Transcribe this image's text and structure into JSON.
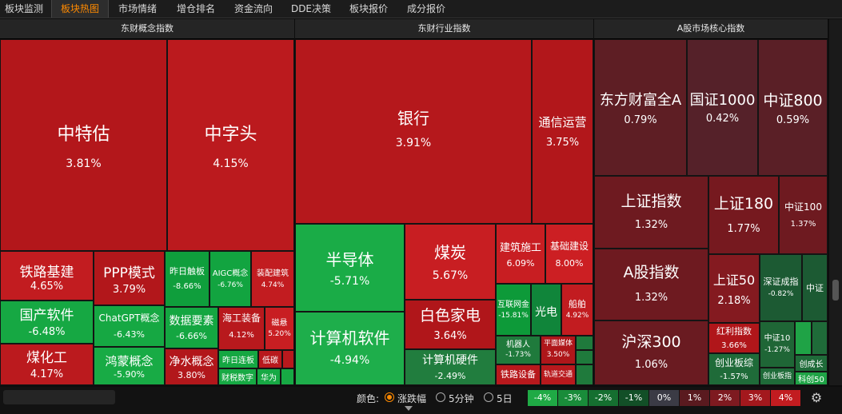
{
  "tabs": [
    "板块监测",
    "板块热图",
    "市场情绪",
    "增仓排名",
    "资金流向",
    "DDE决策",
    "板块报价",
    "成分报价"
  ],
  "active_tab": 1,
  "sections": [
    "东财概念指数",
    "东财行业指数",
    "A股市场核心指数"
  ],
  "tiles": {
    "zhongteigu": {
      "name": "中特估",
      "pct": "3.81%",
      "color": "#b3171b"
    },
    "zhongzitou": {
      "name": "中字头",
      "pct": "4.15%",
      "color": "#bb1a1e"
    },
    "tielujijian": {
      "name": "铁路基建",
      "pct": "4.65%",
      "color": "#c21c20"
    },
    "ppp": {
      "name": "PPP模式",
      "pct": "3.79%",
      "color": "#b2171b"
    },
    "zuorichuban": {
      "name": "昨日触板",
      "pct": "-8.66%",
      "color": "#0f9e3c"
    },
    "aigc": {
      "name": "AIGC概念",
      "pct": "-6.76%",
      "color": "#12a440"
    },
    "zhuangpeijianzhu": {
      "name": "装配建筑",
      "pct": "4.74%",
      "color": "#c21c20"
    },
    "guochanruanjian": {
      "name": "国产软件",
      "pct": "-6.48%",
      "color": "#16a843"
    },
    "chatgpt": {
      "name": "ChatGPT概念",
      "pct": "-6.43%",
      "color": "#16a843"
    },
    "shujuyaosu": {
      "name": "数据要素",
      "pct": "-6.66%",
      "color": "#14a641"
    },
    "haigongzhuangbei": {
      "name": "海工装备",
      "pct": "4.12%",
      "color": "#b8191d"
    },
    "cibei": {
      "name": "磁悬",
      "pct": "5.20%",
      "color": "#c81e22"
    },
    "meihuagong": {
      "name": "煤化工",
      "pct": "4.17%",
      "color": "#bb1a1e"
    },
    "hongmeng": {
      "name": "鸿蒙概念",
      "pct": "-5.90%",
      "color": "#18ab45"
    },
    "jingshui": {
      "name": "净水概念",
      "pct": "3.80%",
      "color": "#b2171b"
    },
    "zuorilianban": {
      "name": "昨日连板",
      "color": "#15a742"
    },
    "ditan": {
      "name": "低碳",
      "color": "#b8191d"
    },
    "caishuishuzi": {
      "name": "财税数字",
      "color": "#17a944"
    },
    "huawei": {
      "name": "华为",
      "color": "#17a944"
    },
    "yinhang": {
      "name": "银行",
      "pct": "3.91%",
      "color": "#b5181c"
    },
    "tongxinyunying": {
      "name": "通信运营",
      "pct": "3.75%",
      "color": "#b2171b"
    },
    "bandaoti": {
      "name": "半导体",
      "pct": "-5.71%",
      "color": "#1aac47"
    },
    "meitan": {
      "name": "煤炭",
      "pct": "5.67%",
      "color": "#c81e22"
    },
    "jianzhushigong": {
      "name": "建筑施工",
      "pct": "6.09%",
      "color": "#c81e22"
    },
    "jichujianshe": {
      "name": "基础建设",
      "pct": "8.00%",
      "color": "#cc1f23"
    },
    "hulianwangluo": {
      "name": "互联网金",
      "pct": "-15.81%",
      "color": "#0d9a39"
    },
    "guangdian": {
      "name": "光电",
      "color": "#10853a"
    },
    "chuanbo": {
      "name": "船舶",
      "pct": "4.92%",
      "color": "#c21c20"
    },
    "jisuanjiruanjian": {
      "name": "计算机软件",
      "pct": "-4.94%",
      "color": "#1eae4b"
    },
    "baisejiadian": {
      "name": "白色家电",
      "pct": "3.64%",
      "color": "#b0161a"
    },
    "jiqiren": {
      "name": "机器人",
      "pct": "-1.73%",
      "color": "#1f7a3c"
    },
    "pingmianmeiti": {
      "name": "平面媒体",
      "pct": "3.50%",
      "color": "#ae161a"
    },
    "jisuanjiyingjian": {
      "name": "计算机硬件",
      "pct": "-2.49%",
      "color": "#217d3e"
    },
    "tieshebei": {
      "name": "铁路设备",
      "color": "#b8191d"
    },
    "guidaojiaotong": {
      "name": "轨道交通",
      "color": "#b8191d"
    },
    "dongfangcaifu": {
      "name": "东方财富全A",
      "pct": "0.79%",
      "color": "#5e1e24"
    },
    "guozheng1000": {
      "name": "国证1000",
      "pct": "0.42%",
      "color": "#552129"
    },
    "zhongzheng800": {
      "name": "中证800",
      "pct": "0.59%",
      "color": "#5a1f26"
    },
    "shangzhengzhishu": {
      "name": "上证指数",
      "pct": "1.32%",
      "color": "#6e1a20"
    },
    "shangzheng180": {
      "name": "上证180",
      "pct": "1.77%",
      "color": "#76191f"
    },
    "zhongzheng100": {
      "name": "中证100",
      "pct": "1.37%",
      "color": "#6e1a20"
    },
    "agu": {
      "name": "A股指数",
      "pct": "1.32%",
      "color": "#6e1a20"
    },
    "shangzheng50": {
      "name": "上证50",
      "pct": "2.18%",
      "color": "#841a20"
    },
    "shenzhengchengzhi": {
      "name": "深证成指",
      "pct": "-0.82%",
      "color": "#1c5a33"
    },
    "zhongzheng": {
      "name": "中证",
      "color": "#1c5a33"
    },
    "husheng300": {
      "name": "沪深300",
      "pct": "1.06%",
      "color": "#6a1b21"
    },
    "hongli": {
      "name": "红利指数",
      "pct": "3.66%",
      "color": "#b0161a"
    },
    "chuangyebanzong": {
      "name": "创业板综",
      "pct": "-1.57%",
      "color": "#1f6b39"
    },
    "zhongzheng10": {
      "name": "中证10",
      "pct": "-1.27%",
      "color": "#1f6636"
    },
    "chuangyebanzhi": {
      "name": "创业板指",
      "color": "#1f6b39"
    },
    "chuangchengzhang": {
      "name": "创成长",
      "color": "#1f6b39"
    },
    "kechuang50": {
      "name": "科创50",
      "color": "#1fa346"
    }
  },
  "bottom": {
    "color_label": "颜色:",
    "options": [
      "涨跌幅",
      "5分钟",
      "5日"
    ],
    "selected": 0,
    "legend": [
      {
        "label": "-4%",
        "color": "#1faa45"
      },
      {
        "label": "-3%",
        "color": "#198c3a"
      },
      {
        "label": "-2%",
        "color": "#156f30"
      },
      {
        "label": "-1%",
        "color": "#124f27"
      },
      {
        "label": "0%",
        "color": "#3b3b45"
      },
      {
        "label": "1%",
        "color": "#5a1a1f"
      },
      {
        "label": "2%",
        "color": "#7e1a20"
      },
      {
        "label": "3%",
        "color": "#a3181d"
      },
      {
        "label": "4%",
        "color": "#c21c20"
      }
    ]
  },
  "icons": {
    "settings": "gear-icon"
  }
}
